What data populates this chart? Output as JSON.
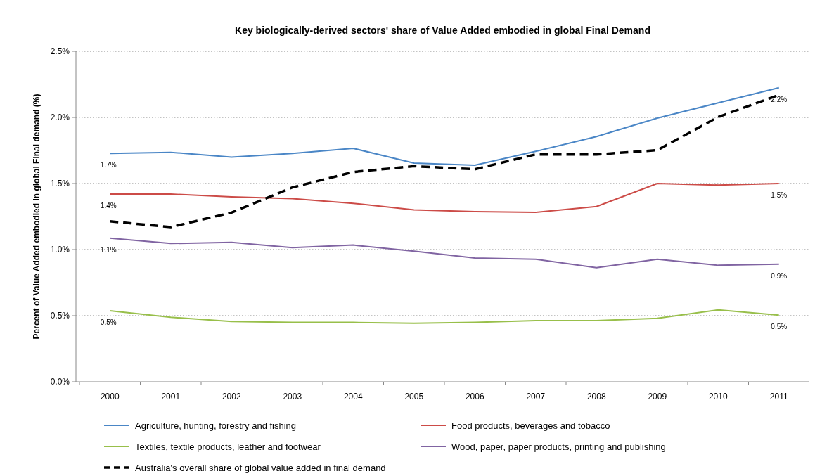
{
  "chart_data": {
    "type": "line",
    "title": "Key biologically-derived sectors' share of Value Added embodied in global Final Demand",
    "ylabel": "Percent of Value Added embodied in global Final demand (%)",
    "categories": [
      "2000",
      "2001",
      "2002",
      "2003",
      "2004",
      "2005",
      "2006",
      "2007",
      "2008",
      "2009",
      "2010",
      "2011"
    ],
    "series": [
      {
        "name": "Agriculture, hunting, forestry and fishing",
        "color": "#4a86c6",
        "values": [
          1.727,
          1.736,
          1.7,
          1.727,
          1.766,
          1.654,
          1.638,
          1.743,
          1.855,
          1.995,
          2.11,
          2.225
        ],
        "value_labels": [
          "1.7%",
          null,
          null,
          null,
          null,
          null,
          null,
          null,
          null,
          null,
          null,
          "2.2%"
        ]
      },
      {
        "name": "Food products, beverages and tobacco",
        "color": "#cc4b47",
        "values": [
          1.42,
          1.42,
          1.399,
          1.385,
          1.35,
          1.3,
          1.287,
          1.282,
          1.326,
          1.5,
          1.488,
          1.5
        ],
        "value_labels": [
          "1.4%",
          null,
          null,
          null,
          null,
          null,
          null,
          null,
          null,
          null,
          null,
          "1.5%"
        ]
      },
      {
        "name": "Textiles, textile products, leather and footwear",
        "color": "#98bf4a",
        "values": [
          0.537,
          0.488,
          0.456,
          0.449,
          0.449,
          0.443,
          0.449,
          0.463,
          0.463,
          0.48,
          0.544,
          0.504
        ],
        "value_labels": [
          "0.5%",
          null,
          null,
          null,
          null,
          null,
          null,
          null,
          null,
          null,
          null,
          "0.5%"
        ]
      },
      {
        "name": "Wood, paper, paper products, printing and publishing",
        "color": "#8064a2",
        "values": [
          1.087,
          1.046,
          1.055,
          1.014,
          1.034,
          0.988,
          0.936,
          0.927,
          0.863,
          0.927,
          0.881,
          0.89
        ],
        "value_labels": [
          "1.1%",
          null,
          null,
          null,
          null,
          null,
          null,
          null,
          null,
          null,
          null,
          "0.9%"
        ]
      },
      {
        "name": "Australia's overall share of global value added in final demand",
        "color": "#000000",
        "line_style": "dashed",
        "values": [
          1.214,
          1.17,
          1.28,
          1.47,
          1.587,
          1.631,
          1.608,
          1.72,
          1.72,
          1.752,
          2.003,
          2.17
        ]
      }
    ],
    "ylim": [
      0,
      2.5
    ],
    "yticks": [
      {
        "value": 0,
        "label": "0.0%"
      },
      {
        "value": 0.5,
        "label": "0.5%"
      },
      {
        "value": 1,
        "label": "1.0%"
      },
      {
        "value": 1.5,
        "label": "1.5%"
      },
      {
        "value": 2,
        "label": "2.0%"
      },
      {
        "value": 2.5,
        "label": "2.5%"
      }
    ],
    "grid": "y",
    "legend": "bottom",
    "line_style": "solid",
    "marker": "none"
  }
}
